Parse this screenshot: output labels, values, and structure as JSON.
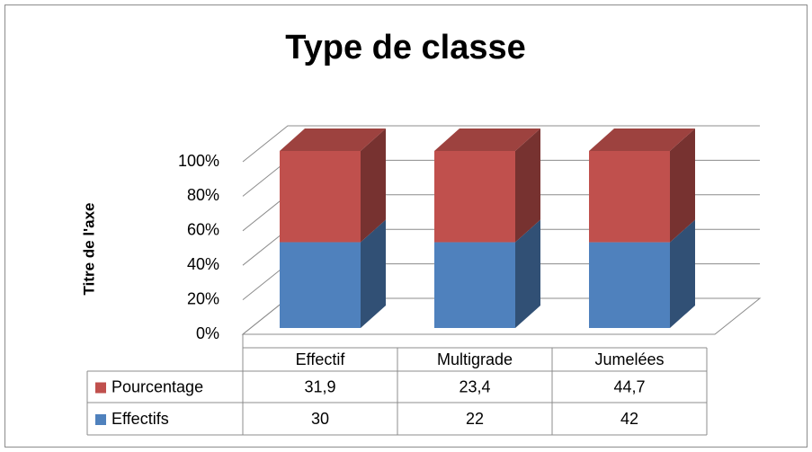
{
  "chart_data": {
    "type": "bar",
    "stacked": "percent",
    "title": "Type de classe",
    "y_label": "Titre de l'axe",
    "categories": [
      "Effectif",
      "Multigrade",
      "Jumelées"
    ],
    "series": [
      {
        "name": "Pourcentage",
        "color": "#c0504d",
        "values": [
          31.9,
          23.4,
          44.7
        ],
        "value_labels": [
          "31,9",
          "23,4",
          "44,7"
        ]
      },
      {
        "name": "Effectifs",
        "color": "#4f81bd",
        "values": [
          30,
          22,
          42
        ]
      }
    ],
    "ylim": [
      0,
      100
    ],
    "yticks": [
      {
        "value": 0,
        "label": "0%"
      },
      {
        "value": 20,
        "label": "20%"
      },
      {
        "value": 40,
        "label": "40%"
      },
      {
        "value": 60,
        "label": "60%"
      },
      {
        "value": 80,
        "label": "80%"
      },
      {
        "value": 100,
        "label": "100%"
      }
    ],
    "grid": true,
    "data_table": true
  }
}
